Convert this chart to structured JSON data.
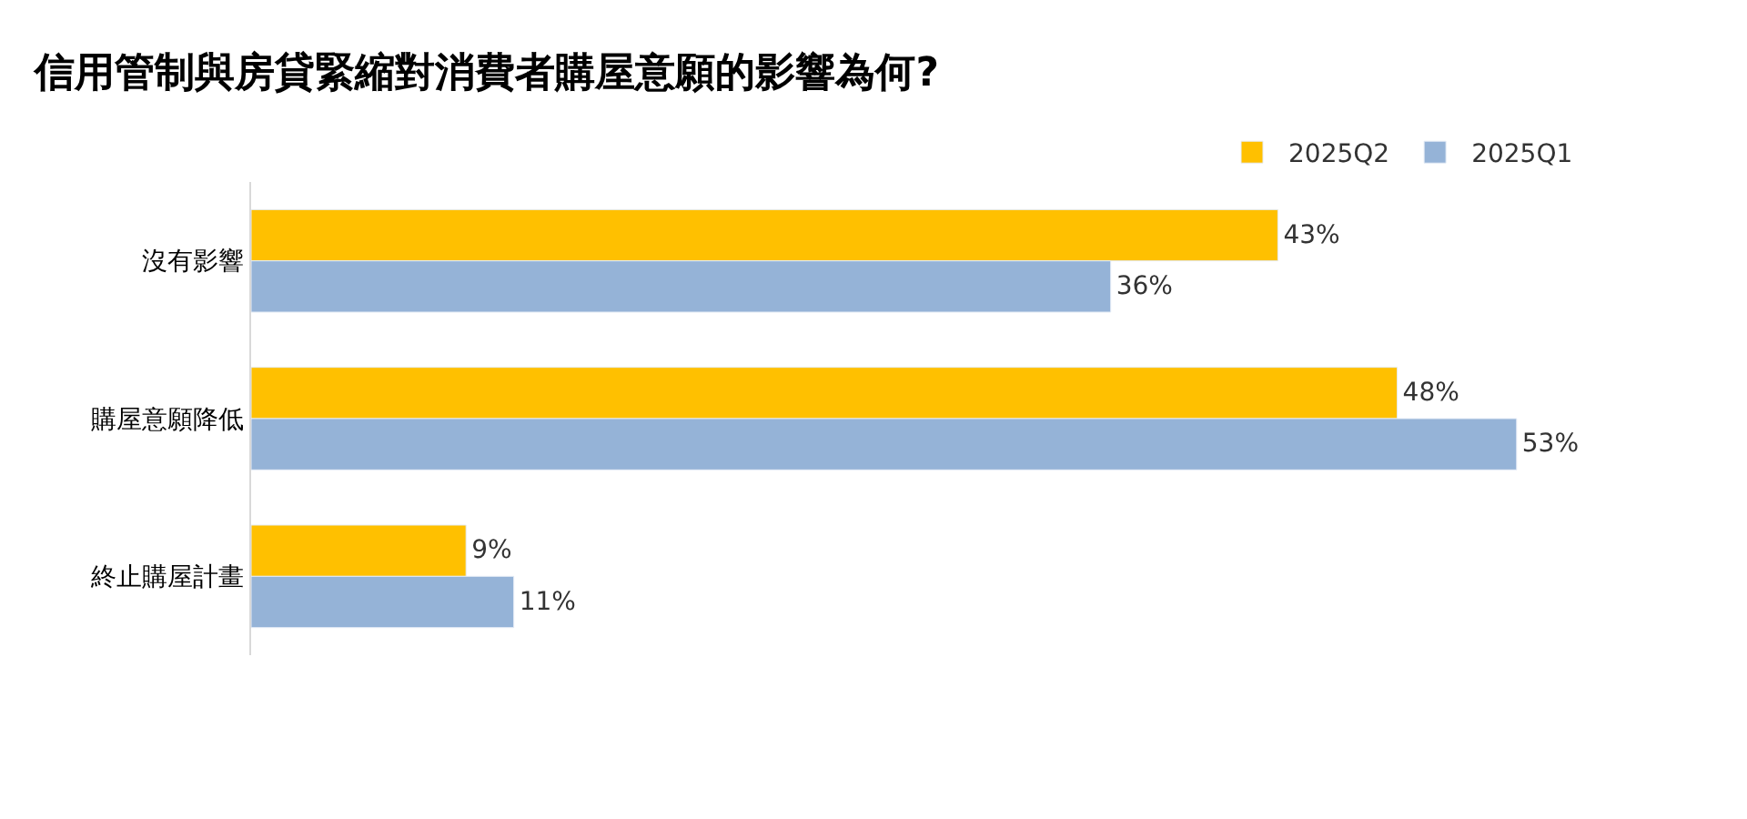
{
  "chart_data": {
    "type": "bar",
    "orientation": "horizontal",
    "title": "信用管制與房貸緊縮對消費者購屋意願的影響為何?",
    "categories": [
      "沒有影響",
      "購屋意願降低",
      "終止購屋計畫"
    ],
    "series": [
      {
        "name": "2025Q2",
        "color": "#ffc000",
        "values": [
          43,
          48,
          9
        ],
        "value_labels": [
          "43%",
          "48%",
          "9%"
        ]
      },
      {
        "name": "2025Q1",
        "color": "#95b3d7",
        "values": [
          36,
          53,
          11
        ],
        "value_labels": [
          "36%",
          "53%",
          "11%"
        ]
      }
    ],
    "legend": "top right"
  }
}
